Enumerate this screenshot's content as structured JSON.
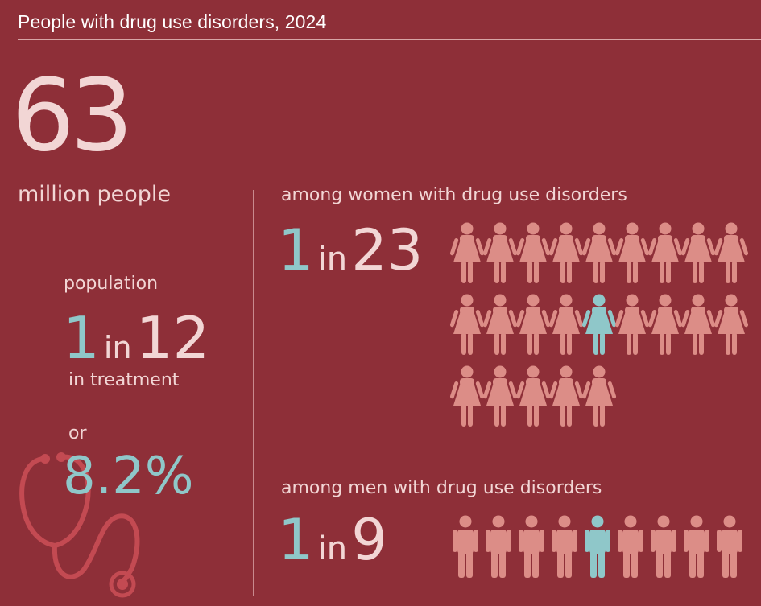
{
  "title": "People with drug use disorders, 2024",
  "total": {
    "value": "63",
    "unit": "million people"
  },
  "treatment": {
    "label_above": "population",
    "ratio": {
      "numerator": "1",
      "connector": "in",
      "denominator": "12"
    },
    "label_below": "in treatment",
    "or_label": "or",
    "percent": "8.2%"
  },
  "women": {
    "label": "among women with drug use disorders",
    "ratio": {
      "numerator": "1",
      "connector": "in",
      "denominator": "23"
    }
  },
  "men": {
    "label": "among men with drug use disorders",
    "ratio": {
      "numerator": "1",
      "connector": "in",
      "denominator": "9"
    }
  },
  "chart_data": [
    {
      "type": "pictogram",
      "group": "women",
      "total_icons": 23,
      "highlighted_icons": 1,
      "highlighted_index": 13,
      "icons_per_row": 9,
      "icon": "woman-icon",
      "highlight_color": "#8fc7c9",
      "base_color": "#dc8d87"
    },
    {
      "type": "pictogram",
      "group": "men",
      "total_icons": 9,
      "highlighted_icons": 1,
      "highlighted_index": 4,
      "icons_per_row": 9,
      "icon": "man-icon",
      "highlight_color": "#8fc7c9",
      "base_color": "#dc8d87"
    }
  ],
  "colors": {
    "background": "#8e2f38",
    "text": "#f2d6d5",
    "accent": "#8fc7c9",
    "icon": "#dc8d87",
    "stethoscope": "#c34a52"
  }
}
